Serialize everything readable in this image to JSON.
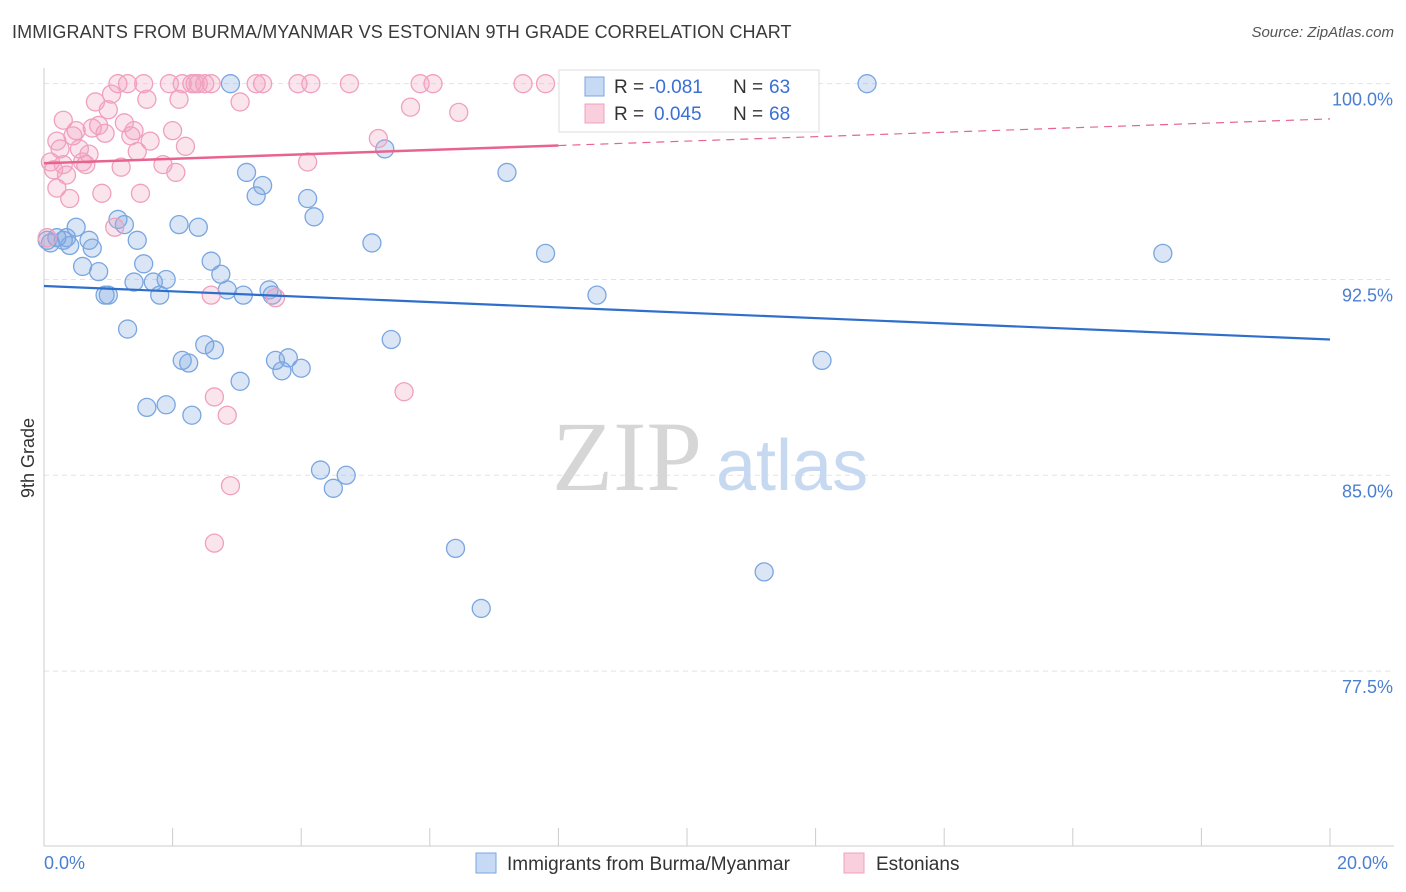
{
  "chart_data": {
    "type": "scatter",
    "title": "IMMIGRANTS FROM BURMA/MYANMAR VS ESTONIAN 9TH GRADE CORRELATION CHART",
    "source": "Source: ZipAtlas.com",
    "ylabel": "9th Grade",
    "xlim": [
      0,
      20
    ],
    "ylim": [
      70.8,
      100.6
    ],
    "x_tick_labels": [
      "0.0%",
      "20.0%"
    ],
    "y_ticks": [
      77.5,
      85.0,
      92.5,
      100.0
    ],
    "y_tick_labels": [
      "77.5%",
      "85.0%",
      "92.5%",
      "100.0%"
    ],
    "grid": true,
    "watermark": {
      "zip": "ZIP",
      "atlas": "atlas"
    },
    "legend": {
      "r_label": "R =",
      "n_label": "N =",
      "entries": [
        {
          "series": "Immigrants from Burma/Myanmar",
          "r": "-0.081",
          "n": "63"
        },
        {
          "series": "Estonians",
          "r": "0.045",
          "n": "68"
        }
      ]
    },
    "series": [
      {
        "name": "Immigrants from Burma/Myanmar",
        "color": "#7aa6e0",
        "line_color": "#2f6fcc",
        "trend": {
          "x": [
            0,
            20
          ],
          "y": [
            92.25,
            90.2
          ]
        },
        "trend_dashed": false,
        "points": [
          [
            0.05,
            94.0
          ],
          [
            0.1,
            93.9
          ],
          [
            0.2,
            94.1
          ],
          [
            0.3,
            94.0
          ],
          [
            0.35,
            94.1
          ],
          [
            0.4,
            93.8
          ],
          [
            0.5,
            94.5
          ],
          [
            0.6,
            93.0
          ],
          [
            0.7,
            94.0
          ],
          [
            0.75,
            93.7
          ],
          [
            0.85,
            92.8
          ],
          [
            0.95,
            91.9
          ],
          [
            1.0,
            91.9
          ],
          [
            1.15,
            94.8
          ],
          [
            1.25,
            94.6
          ],
          [
            1.3,
            90.6
          ],
          [
            1.4,
            92.4
          ],
          [
            1.45,
            94.0
          ],
          [
            1.55,
            93.1
          ],
          [
            1.7,
            92.4
          ],
          [
            1.8,
            91.9
          ],
          [
            1.9,
            92.5
          ],
          [
            2.1,
            94.6
          ],
          [
            2.15,
            89.4
          ],
          [
            2.25,
            89.3
          ],
          [
            2.4,
            94.5
          ],
          [
            2.5,
            90.0
          ],
          [
            2.6,
            93.2
          ],
          [
            2.65,
            89.8
          ],
          [
            2.75,
            92.7
          ],
          [
            2.85,
            92.1
          ],
          [
            3.05,
            88.6
          ],
          [
            3.1,
            91.9
          ],
          [
            3.15,
            96.6
          ],
          [
            3.3,
            95.7
          ],
          [
            3.4,
            96.1
          ],
          [
            3.55,
            91.9
          ],
          [
            3.6,
            89.4
          ],
          [
            3.7,
            89.0
          ],
          [
            3.8,
            89.5
          ],
          [
            3.5,
            92.1
          ],
          [
            4.0,
            89.1
          ],
          [
            4.1,
            95.6
          ],
          [
            4.2,
            94.9
          ],
          [
            4.3,
            85.2
          ],
          [
            4.5,
            84.5
          ],
          [
            4.7,
            85.0
          ],
          [
            5.1,
            93.9
          ],
          [
            5.3,
            97.5
          ],
          [
            5.4,
            90.2
          ],
          [
            6.4,
            82.2
          ],
          [
            6.8,
            79.9
          ],
          [
            7.2,
            96.6
          ],
          [
            7.8,
            93.5
          ],
          [
            8.6,
            91.9
          ],
          [
            11.2,
            81.3
          ],
          [
            12.1,
            89.4
          ],
          [
            12.8,
            100.0
          ],
          [
            17.4,
            93.5
          ],
          [
            2.9,
            100.0
          ],
          [
            1.6,
            87.6
          ],
          [
            1.9,
            87.7
          ],
          [
            2.3,
            87.3
          ]
        ]
      },
      {
        "name": "Estonians",
        "color": "#f0a0be",
        "line_color": "#e8648f",
        "trend": {
          "x": [
            0,
            20
          ],
          "y": [
            96.95,
            98.65
          ]
        },
        "trend_solid_until": 8.0,
        "trend_dashed": true,
        "points": [
          [
            0.05,
            94.1
          ],
          [
            0.1,
            97.0
          ],
          [
            0.15,
            96.7
          ],
          [
            0.2,
            97.8
          ],
          [
            0.25,
            97.5
          ],
          [
            0.3,
            96.9
          ],
          [
            0.35,
            96.5
          ],
          [
            0.4,
            95.6
          ],
          [
            0.45,
            98.0
          ],
          [
            0.5,
            98.2
          ],
          [
            0.55,
            97.5
          ],
          [
            0.6,
            97.0
          ],
          [
            0.65,
            96.9
          ],
          [
            0.7,
            97.3
          ],
          [
            0.75,
            98.3
          ],
          [
            0.8,
            99.3
          ],
          [
            0.85,
            98.4
          ],
          [
            0.9,
            95.8
          ],
          [
            0.95,
            98.1
          ],
          [
            1.0,
            99.0
          ],
          [
            1.05,
            99.6
          ],
          [
            1.1,
            94.5
          ],
          [
            1.15,
            100.0
          ],
          [
            1.2,
            96.8
          ],
          [
            1.25,
            98.5
          ],
          [
            1.3,
            100.0
          ],
          [
            1.35,
            98.0
          ],
          [
            1.4,
            98.2
          ],
          [
            1.45,
            97.4
          ],
          [
            1.5,
            95.8
          ],
          [
            1.55,
            100.0
          ],
          [
            1.6,
            99.4
          ],
          [
            1.65,
            97.8
          ],
          [
            1.85,
            96.9
          ],
          [
            1.95,
            100.0
          ],
          [
            2.0,
            98.2
          ],
          [
            2.05,
            96.6
          ],
          [
            2.1,
            99.4
          ],
          [
            2.15,
            100.0
          ],
          [
            2.2,
            97.6
          ],
          [
            2.3,
            100.0
          ],
          [
            2.35,
            100.0
          ],
          [
            2.4,
            100.0
          ],
          [
            2.5,
            100.0
          ],
          [
            2.6,
            100.0
          ],
          [
            2.65,
            88.0
          ],
          [
            2.6,
            91.9
          ],
          [
            2.85,
            87.3
          ],
          [
            2.9,
            84.6
          ],
          [
            2.65,
            82.4
          ],
          [
            3.05,
            99.3
          ],
          [
            3.3,
            100.0
          ],
          [
            3.4,
            100.0
          ],
          [
            3.6,
            91.8
          ],
          [
            3.95,
            100.0
          ],
          [
            4.1,
            97.0
          ],
          [
            4.15,
            100.0
          ],
          [
            4.75,
            100.0
          ],
          [
            5.2,
            97.9
          ],
          [
            5.6,
            88.2
          ],
          [
            5.7,
            99.1
          ],
          [
            5.85,
            100.0
          ],
          [
            6.05,
            100.0
          ],
          [
            6.45,
            98.9
          ],
          [
            7.45,
            100.0
          ],
          [
            7.8,
            100.0
          ],
          [
            0.2,
            96.0
          ],
          [
            0.3,
            98.6
          ]
        ]
      }
    ],
    "bottom_legend": [
      "Immigrants from Burma/Myanmar",
      "Estonians"
    ]
  }
}
